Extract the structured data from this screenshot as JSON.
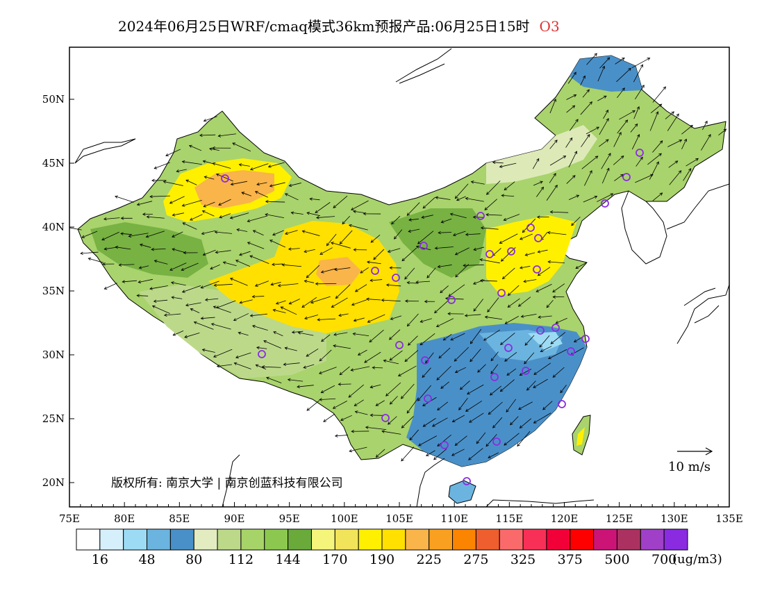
{
  "title": {
    "main": "2024年06月25日WRF/cmaq模式36km预报产品:06月25日15时",
    "species": "O3",
    "species_color": "#e03030"
  },
  "axes": {
    "lon_ticks": [
      "75E",
      "80E",
      "85E",
      "90E",
      "95E",
      "100E",
      "105E",
      "110E",
      "115E",
      "120E",
      "125E",
      "130E",
      "135E"
    ],
    "lat_ticks": [
      "50N",
      "45N",
      "40N",
      "35N",
      "30N",
      "25N",
      "20N"
    ]
  },
  "wind_reference": {
    "label": "10 m/s"
  },
  "copyright": "版权所有: 南京大学 | 南京创蓝科技有限公司",
  "colorbar": {
    "colors": [
      "#ffffff",
      "#d6f0fb",
      "#9ddbf5",
      "#6bb4e0",
      "#4a90c8",
      "#e2ecc0",
      "#bcd98a",
      "#a7d468",
      "#8cc850",
      "#6aaa3a",
      "#f4f57a",
      "#f2e45a",
      "#fff000",
      "#ffe000",
      "#f9b44a",
      "#f9a020",
      "#fb8400",
      "#ef5e2e",
      "#fa6a6a",
      "#f83057",
      "#f20038",
      "#ff0000",
      "#cc1477",
      "#ab3260",
      "#a040c8",
      "#8a2be2"
    ],
    "labels": [
      "16",
      "48",
      "80",
      "112",
      "144",
      "170",
      "190",
      "225",
      "275",
      "325",
      "375",
      "500",
      "700"
    ],
    "unit": "(ug/m3)"
  },
  "stations": {
    "marker_color": "#8a2be2"
  }
}
